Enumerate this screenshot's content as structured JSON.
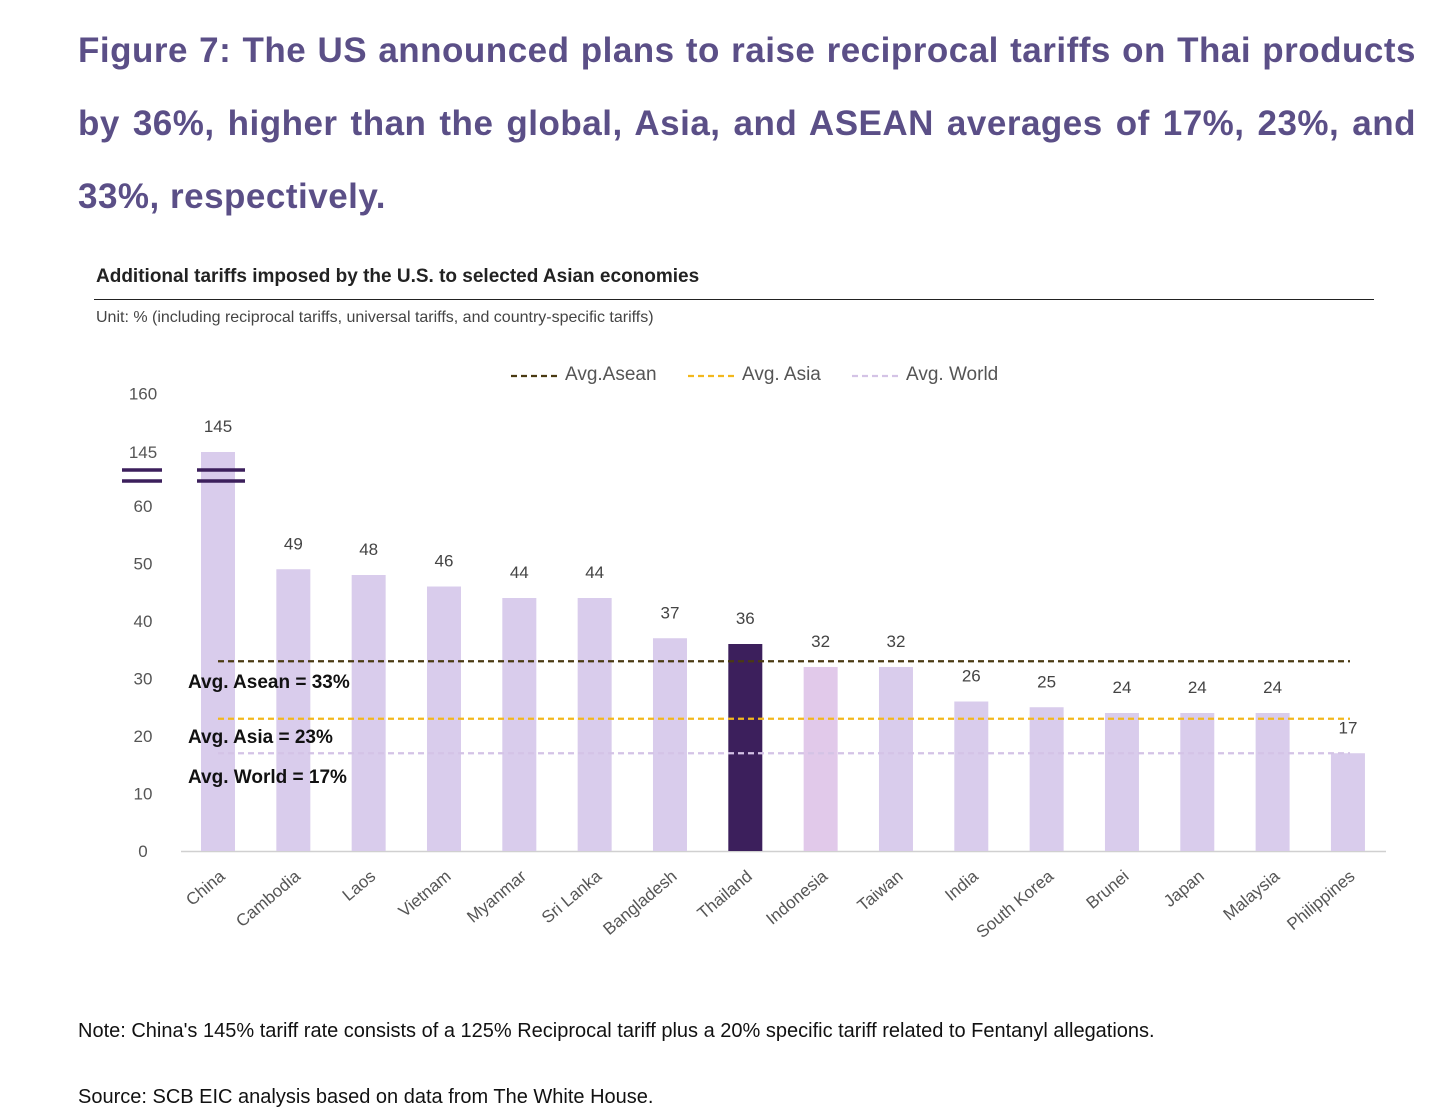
{
  "figure": {
    "title": "Figure 7: The US announced plans to raise reciprocal tariffs on Thai products by 36%, higher than the global, Asia, and ASEAN averages of 17%, 23%, and 33%, respectively."
  },
  "chart_data": {
    "type": "bar",
    "title": "Additional tariffs imposed by the U.S. to selected Asian economies",
    "subtitle": "Unit: % (including reciprocal tariffs, universal tariffs, and country-specific tariffs)",
    "categories": [
      "China",
      "Cambodia",
      "Laos",
      "Vietnam",
      "Myanmar",
      "Sri Lanka",
      "Bangladesh",
      "Thailand",
      "Indonesia",
      "Taiwan",
      "India",
      "South Korea",
      "Brunei",
      "Japan",
      "Malaysia",
      "Philippines"
    ],
    "values": [
      145,
      49,
      48,
      46,
      44,
      44,
      37,
      36,
      32,
      32,
      26,
      25,
      24,
      24,
      24,
      17
    ],
    "value_labels": [
      "145",
      "49",
      "48",
      "46",
      "44",
      "44",
      "37",
      "36",
      "32",
      "32",
      "26",
      "25",
      "24",
      "24",
      "24",
      "17"
    ],
    "highlight_category": "Thailand",
    "y_axis_break": {
      "below": 60,
      "above": 145
    },
    "yticks": [
      {
        "value": 0,
        "label": "0"
      },
      {
        "value": 10,
        "label": "10"
      },
      {
        "value": 20,
        "label": "20"
      },
      {
        "value": 30,
        "label": "30"
      },
      {
        "value": 40,
        "label": "40"
      },
      {
        "value": 50,
        "label": "50"
      },
      {
        "value": 60,
        "label": "60"
      },
      {
        "value": 145,
        "label": "145"
      },
      {
        "value": 160,
        "label": "160"
      }
    ],
    "reference_lines": [
      {
        "name": "Avg.Asean",
        "value": 33,
        "annotation": "Avg.  Asean = 33%",
        "color": "#4a3a12"
      },
      {
        "name": "Avg. Asia",
        "value": 23,
        "annotation": "Avg.  Asia = 23%",
        "color": "#f2b81c"
      },
      {
        "name": "Avg. World",
        "value": 17,
        "annotation": "Avg.  World = 17%",
        "color": "#d4c3e6"
      }
    ],
    "legend": [
      "Avg.Asean",
      "Avg. Asia",
      "Avg. World"
    ],
    "legend_position": "top-center",
    "colors": {
      "bar": "#d9ccec",
      "bar_alt": "#e1c9ea",
      "highlight": "#3c1f5c",
      "axis": "#d0d0d0",
      "break_mark": "#3c1f5c"
    }
  },
  "note": "Note: China's 145% tariff rate consists of a 125% Reciprocal tariff plus a 20% specific tariff related to Fentanyl allegations.",
  "source": "Source: SCB EIC analysis based on data from The White House."
}
